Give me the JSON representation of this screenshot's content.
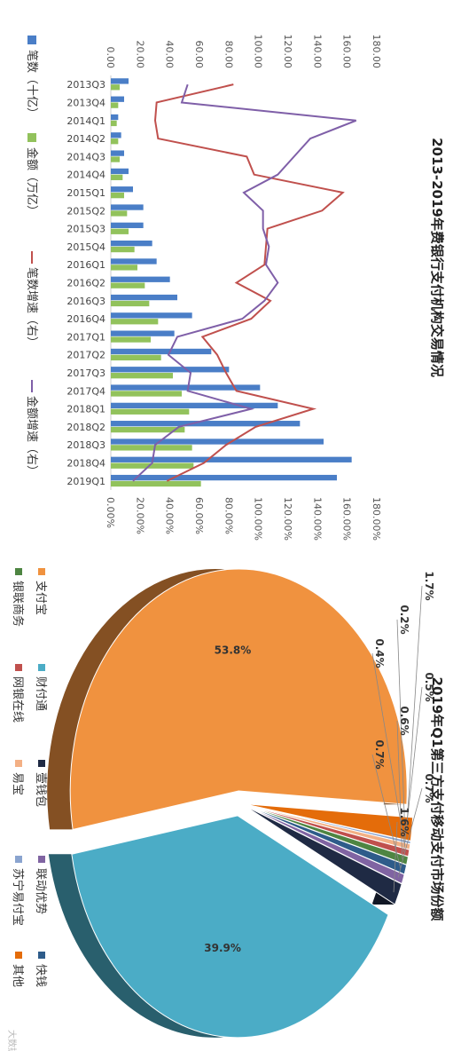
{
  "chart_data": [
    {
      "type": "bar",
      "title": "2013-2019年费银行支付机构交易情况",
      "categories": [
        "2013Q3",
        "2013Q4",
        "2014Q1",
        "2014Q2",
        "2014Q3",
        "2014Q4",
        "2015Q1",
        "2015Q2",
        "2015Q3",
        "2015Q4",
        "2016Q1",
        "2016Q2",
        "2016Q3",
        "2016Q4",
        "2017Q1",
        "2017Q2",
        "2017Q3",
        "2017Q4",
        "2018Q1",
        "2018Q2",
        "2018Q3",
        "2018Q4",
        "2019Q1"
      ],
      "left_axis_ticks": [
        "0.00",
        "20.00",
        "40.00",
        "60.00",
        "80.00",
        "100.00",
        "120.00",
        "140.00",
        "160.00",
        "180.00"
      ],
      "right_axis_ticks": [
        "0.00%",
        "20.00%",
        "40.00%",
        "60.00%",
        "80.00%",
        "100.00%",
        "120.00%",
        "140.00%",
        "160.00%",
        "180.00%"
      ],
      "ylim_left": [
        0,
        180
      ],
      "ylim_right": [
        0,
        180
      ],
      "grid": false,
      "legend_position": "left",
      "series": [
        {
          "name": "笔数（十亿）",
          "axis": "left",
          "kind": "bar",
          "color": "#4a7ec7",
          "values": [
            12,
            9,
            5,
            7,
            9,
            12,
            15,
            22,
            22,
            28,
            31,
            40,
            45,
            55,
            43,
            68,
            80,
            101,
            113,
            128,
            144,
            163,
            153
          ]
        },
        {
          "name": "金额（万亿）",
          "axis": "left",
          "kind": "bar",
          "color": "#92c25c",
          "values": [
            6,
            5,
            4,
            5,
            6,
            8,
            9,
            11,
            12,
            16,
            18,
            23,
            26,
            32,
            27,
            34,
            42,
            48,
            53,
            50,
            55,
            56,
            61
          ]
        },
        {
          "name": "笔数增速（右）",
          "axis": "right",
          "kind": "line",
          "color": "#c0504d",
          "values": [
            83,
            31,
            30,
            32,
            92,
            97,
            157,
            143,
            106,
            105,
            104,
            85,
            108,
            95,
            62,
            72,
            78,
            85,
            137,
            98,
            78,
            63,
            38
          ]
        },
        {
          "name": "金额增速（右）",
          "axis": "right",
          "kind": "line",
          "color": "#7f5fa8",
          "values": [
            52,
            48,
            166,
            135,
            124,
            113,
            90,
            103,
            103,
            107,
            105,
            113,
            104,
            89,
            45,
            39,
            54,
            52,
            95,
            46,
            30,
            28,
            15
          ]
        }
      ]
    },
    {
      "type": "pie",
      "title": "2019年Q1第三方支付移动支付市场份额",
      "series": [
        {
          "name": "支付宝",
          "value": 53.8,
          "label": "53.8%",
          "color": "#f0923f"
        },
        {
          "name": "财付通",
          "value": 39.9,
          "label": "39.9%",
          "color": "#4bacc6"
        },
        {
          "name": "壹钱包",
          "value": 1.6,
          "label": "1.6%",
          "color": "#1f2a44"
        },
        {
          "name": "联动优势",
          "value": 0.7,
          "label": "0.7%",
          "color": "#8064a2"
        },
        {
          "name": "快钱",
          "value": 0.7,
          "label": "0.7%",
          "color": "#2e5c8a"
        },
        {
          "name": "银联商务",
          "value": 0.6,
          "label": "0.6%",
          "color": "#4e8542"
        },
        {
          "name": "网银在线",
          "value": 0.5,
          "label": "0.5%",
          "color": "#c0504d"
        },
        {
          "name": "易宝",
          "value": 0.4,
          "label": "0.4%",
          "color": "#f3b085"
        },
        {
          "name": "苏宁易付宝",
          "value": 0.2,
          "label": "0.2%",
          "color": "#8aa4cf"
        },
        {
          "name": "其他",
          "value": 1.7,
          "label": "1.7%",
          "color": "#e46c0a"
        }
      ]
    }
  ],
  "watermark": "大数据报告"
}
